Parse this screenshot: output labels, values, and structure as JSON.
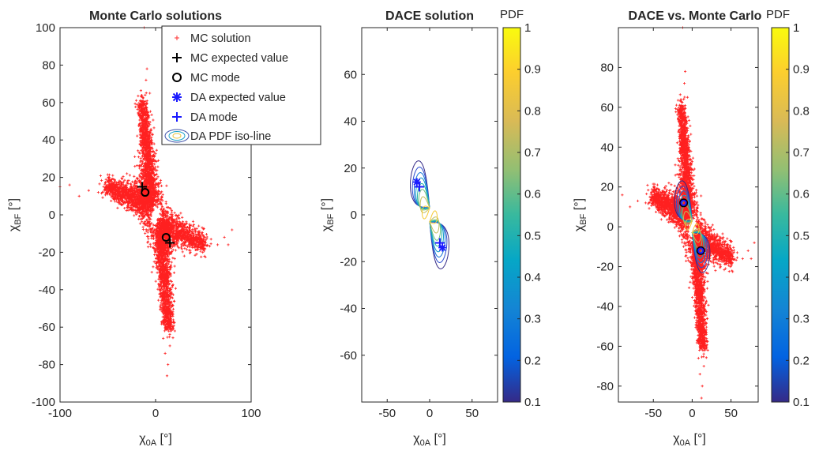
{
  "chart_data": [
    {
      "type": "scatter",
      "title": "Monte Carlo solutions",
      "xlabel": "χ0A [°]",
      "ylabel": "χBF [°]",
      "xlabel_main": "χ",
      "xlabel_sub": "0A",
      "xlabel_unit": "[°]",
      "ylabel_main": "χ",
      "ylabel_sub": "BF",
      "ylabel_unit": "[°]",
      "xlim": [
        -100,
        100
      ],
      "ylim": [
        -100,
        100
      ],
      "xticks": [
        "-100",
        "0",
        "100"
      ],
      "yticks": [
        "100",
        "80",
        "60",
        "40",
        "20",
        "0",
        "-20",
        "-40",
        "-60",
        "-80",
        "-100"
      ],
      "grid": false,
      "legend_position": "top-right",
      "legend": [
        {
          "label": "MC solution",
          "marker": "plus",
          "color": "#ff3030"
        },
        {
          "label": "MC expected value",
          "marker": "plus",
          "color": "#000000"
        },
        {
          "label": "MC mode",
          "marker": "circle",
          "color": "#000000"
        },
        {
          "label": "DA expected value",
          "marker": "asterisk",
          "color": "#1a1aff"
        },
        {
          "label": "DA mode",
          "marker": "plus",
          "color": "#1a1aff"
        },
        {
          "label": "DA PDF iso-line",
          "marker": "ellipses",
          "color": "#4a6fbf"
        }
      ],
      "points": {
        "mc_expected": [
          [
            -14,
            15
          ],
          [
            15,
            -15
          ]
        ],
        "mc_mode": [
          [
            -11,
            12
          ],
          [
            11,
            -12
          ]
        ]
      }
    },
    {
      "type": "contour",
      "title": "DACE solution",
      "xlabel": "χ0A [°]",
      "ylabel": "χBF [°]",
      "xlabel_main": "χ",
      "xlabel_sub": "0A",
      "xlabel_unit": "[°]",
      "ylabel_main": "χ",
      "ylabel_sub": "BF",
      "ylabel_unit": "[°]",
      "xlim": [
        -80,
        80
      ],
      "ylim": [
        -80,
        80
      ],
      "xticks": [
        "-50",
        "0",
        "50"
      ],
      "yticks": [
        "60",
        "40",
        "20",
        "0",
        "-20",
        "-40",
        "-60"
      ],
      "colorbar_label": "PDF",
      "colorbar_ticks": [
        "1",
        "0.9",
        "0.8",
        "0.7",
        "0.6",
        "0.5",
        "0.4",
        "0.3",
        "0.2",
        "0.1"
      ],
      "points": {
        "da_expected": [
          [
            -15,
            14
          ],
          [
            15,
            -14
          ]
        ],
        "da_mode": [
          [
            -12,
            12
          ],
          [
            12,
            -12
          ]
        ]
      }
    },
    {
      "type": "scatter",
      "title": "DACE vs. Monte Carlo",
      "xlabel": "χ0A [°]",
      "ylabel": "χBF [°]",
      "xlabel_main": "χ",
      "xlabel_sub": "0A",
      "xlabel_unit": "[°]",
      "ylabel_main": "χ",
      "ylabel_sub": "BF",
      "ylabel_unit": "[°]",
      "xlim": [
        -95,
        85
      ],
      "ylim": [
        -88,
        100
      ],
      "xticks": [
        "-50",
        "0",
        "50"
      ],
      "yticks": [
        "80",
        "60",
        "40",
        "20",
        "0",
        "-20",
        "-40",
        "-60",
        "-80"
      ],
      "colorbar_label": "PDF",
      "colorbar_ticks": [
        "1",
        "0.9",
        "0.8",
        "0.7",
        "0.6",
        "0.5",
        "0.4",
        "0.3",
        "0.2",
        "0.1"
      ],
      "points": {
        "modes": [
          [
            -11,
            12
          ],
          [
            11,
            -12
          ]
        ]
      }
    }
  ]
}
